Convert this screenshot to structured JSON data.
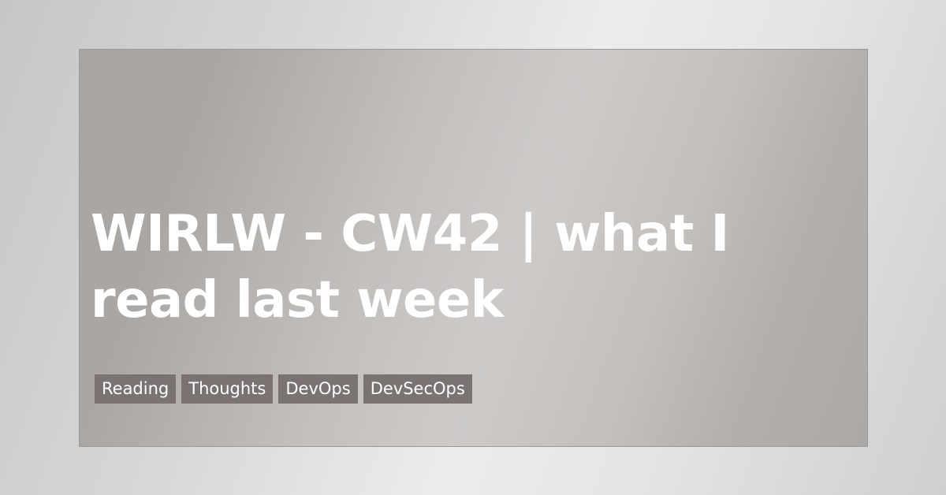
{
  "post": {
    "title": "WIRLW - CW42 | what I read last week",
    "tags": [
      "Reading",
      "Thoughts",
      "DevOps",
      "DevSecOps"
    ]
  },
  "colors": {
    "card_border": "#9c9896",
    "tag_background": "#7b7371",
    "text": "#ffffff"
  }
}
